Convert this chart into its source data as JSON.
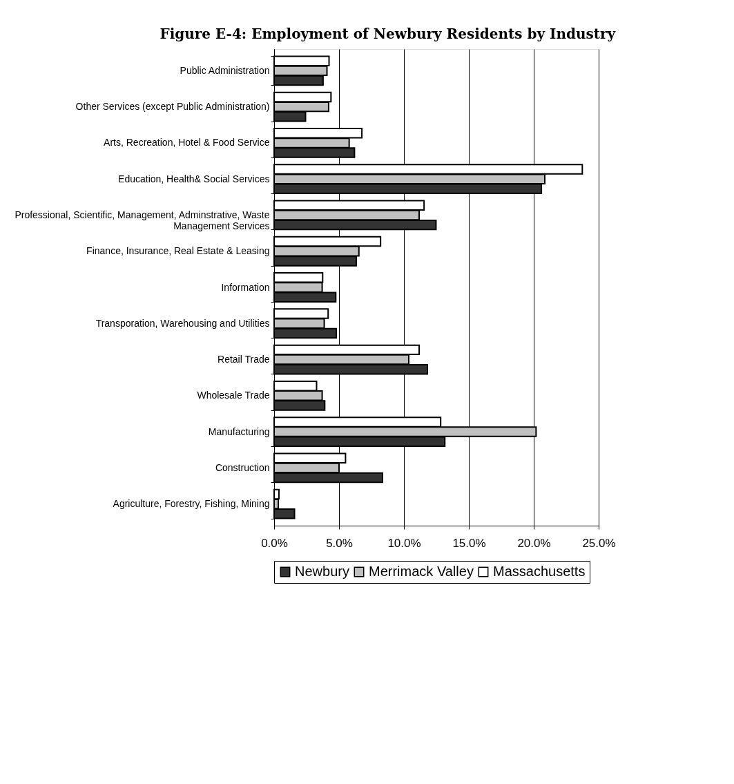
{
  "chart_data": {
    "type": "bar",
    "orientation": "horizontal",
    "title": "Figure E-4:  Employment of Newbury Residents by Industry",
    "categories": [
      "Public Administration",
      "Other Services (except Public Administration)",
      "Arts, Recreation, Hotel & Food Service",
      "Education, Health& Social Services",
      "Professional, Scientific, Management, Adminstrative, Waste Management Services",
      "Finance, Insurance, Real Estate & Leasing",
      "Information",
      "Transporation, Warehousing and Utilities",
      "Retail Trade",
      "Wholesale Trade",
      "Manufacturing",
      "Construction",
      "Agriculture, Forestry, Fishing, Mining"
    ],
    "series": [
      {
        "name": "Newbury",
        "color": "#333333",
        "values": [
          3.77,
          2.42,
          6.19,
          20.59,
          12.47,
          6.33,
          4.75,
          4.79,
          11.81,
          3.9,
          13.15,
          8.35,
          1.57
        ]
      },
      {
        "name": "Merrimack Valley",
        "color": "#c0c0c0",
        "values": [
          4.07,
          4.2,
          5.78,
          20.85,
          11.17,
          6.53,
          3.7,
          3.86,
          10.37,
          3.7,
          20.18,
          5.0,
          0.32
        ]
      },
      {
        "name": "Massachusetts",
        "color": "#ffffff",
        "values": [
          4.23,
          4.38,
          6.76,
          23.74,
          11.55,
          8.2,
          3.74,
          4.16,
          11.17,
          3.27,
          12.83,
          5.5,
          0.37
        ]
      }
    ],
    "xlim": [
      0,
      25
    ],
    "xticks": [
      {
        "value": 0,
        "label": "0.0%"
      },
      {
        "value": 5,
        "label": "5.0%"
      },
      {
        "value": 10,
        "label": "10.0%"
      },
      {
        "value": 15,
        "label": "15.0%"
      },
      {
        "value": 20,
        "label": "20.0%"
      },
      {
        "value": 25,
        "label": "25.0%"
      }
    ],
    "grid": "x",
    "legend": "bottom"
  }
}
